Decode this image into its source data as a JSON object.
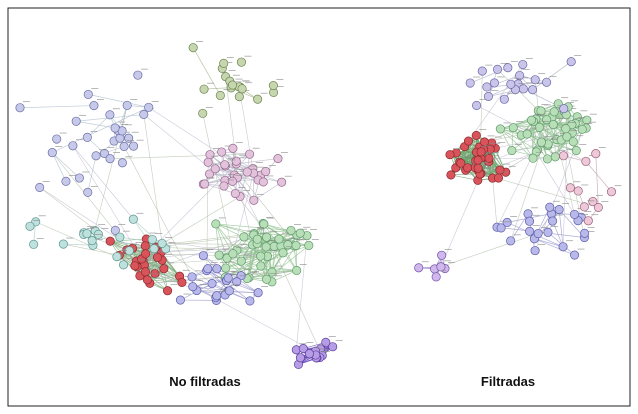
{
  "panels": [
    {
      "label": "No filtradas"
    },
    {
      "label": "Filtradas"
    }
  ]
}
